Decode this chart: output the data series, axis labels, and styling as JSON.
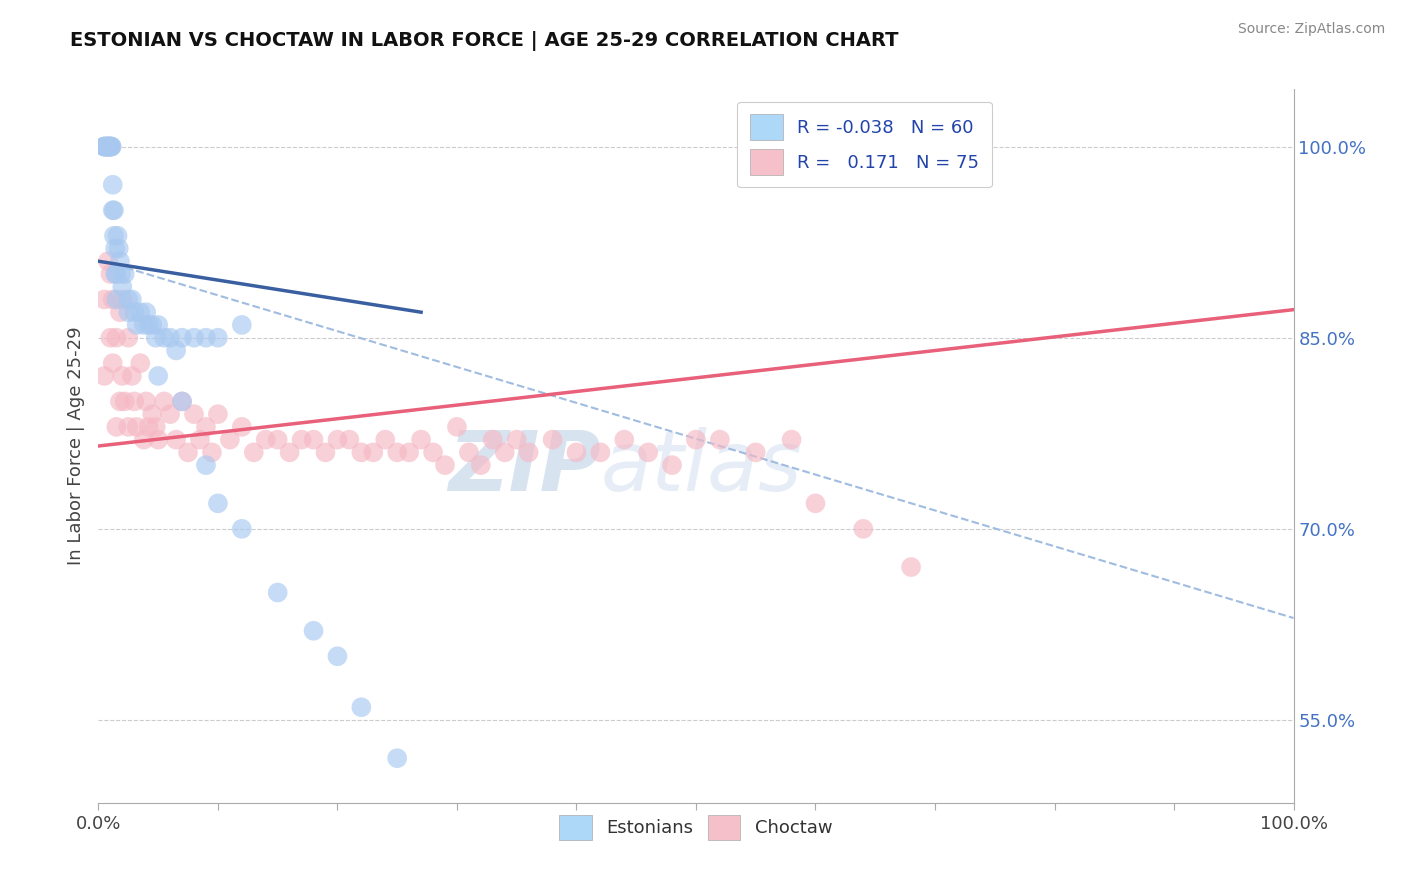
{
  "title": "ESTONIAN VS CHOCTAW IN LABOR FORCE | AGE 25-29 CORRELATION CHART",
  "source": "Source: ZipAtlas.com",
  "ylabel": "In Labor Force | Age 25-29",
  "xlim": [
    0.0,
    1.0
  ],
  "ylim": [
    0.485,
    1.045
  ],
  "blue_color": "#A8C8F0",
  "pink_color": "#F5B8C4",
  "blue_line_color": "#3A5FA0",
  "pink_line_color": "#E8607A",
  "dash_line_color": "#A0BCE0",
  "R_blue": -0.038,
  "N_blue": 60,
  "R_pink": 0.171,
  "N_pink": 75,
  "watermark_zip": "ZIP",
  "watermark_atlas": "atlas",
  "y_ticks_right": [
    0.55,
    0.7,
    0.85,
    1.0
  ],
  "y_tick_labels_right": [
    "55.0%",
    "70.0%",
    "85.0%",
    "100.0%"
  ],
  "blue_x": [
    0.005,
    0.005,
    0.005,
    0.005,
    0.007,
    0.007,
    0.008,
    0.008,
    0.008,
    0.009,
    0.009,
    0.01,
    0.01,
    0.01,
    0.011,
    0.011,
    0.012,
    0.012,
    0.013,
    0.013,
    0.014,
    0.014,
    0.015,
    0.015,
    0.016,
    0.017,
    0.018,
    0.019,
    0.02,
    0.022,
    0.025,
    0.025,
    0.028,
    0.03,
    0.032,
    0.035,
    0.038,
    0.04,
    0.042,
    0.045,
    0.048,
    0.05,
    0.055,
    0.06,
    0.065,
    0.07,
    0.08,
    0.09,
    0.1,
    0.12,
    0.05,
    0.07,
    0.09,
    0.1,
    0.12,
    0.15,
    0.18,
    0.2,
    0.22,
    0.25
  ],
  "blue_y": [
    1.0,
    1.0,
    1.0,
    1.0,
    1.0,
    1.0,
    1.0,
    1.0,
    1.0,
    1.0,
    1.0,
    1.0,
    1.0,
    1.0,
    1.0,
    1.0,
    0.97,
    0.95,
    0.95,
    0.93,
    0.92,
    0.9,
    0.9,
    0.88,
    0.93,
    0.92,
    0.91,
    0.9,
    0.89,
    0.9,
    0.88,
    0.87,
    0.88,
    0.87,
    0.86,
    0.87,
    0.86,
    0.87,
    0.86,
    0.86,
    0.85,
    0.86,
    0.85,
    0.85,
    0.84,
    0.85,
    0.85,
    0.85,
    0.85,
    0.86,
    0.82,
    0.8,
    0.75,
    0.72,
    0.7,
    0.65,
    0.62,
    0.6,
    0.56,
    0.52
  ],
  "pink_x": [
    0.005,
    0.005,
    0.008,
    0.01,
    0.01,
    0.012,
    0.012,
    0.015,
    0.015,
    0.018,
    0.018,
    0.02,
    0.02,
    0.022,
    0.025,
    0.025,
    0.028,
    0.03,
    0.032,
    0.035,
    0.038,
    0.04,
    0.042,
    0.045,
    0.048,
    0.05,
    0.055,
    0.06,
    0.065,
    0.07,
    0.075,
    0.08,
    0.085,
    0.09,
    0.095,
    0.1,
    0.11,
    0.12,
    0.13,
    0.14,
    0.15,
    0.16,
    0.17,
    0.18,
    0.19,
    0.2,
    0.21,
    0.22,
    0.23,
    0.24,
    0.25,
    0.26,
    0.27,
    0.28,
    0.29,
    0.3,
    0.31,
    0.32,
    0.33,
    0.34,
    0.35,
    0.36,
    0.38,
    0.4,
    0.42,
    0.44,
    0.46,
    0.48,
    0.5,
    0.52,
    0.55,
    0.58,
    0.6,
    0.64,
    0.68
  ],
  "pink_y": [
    0.88,
    0.82,
    0.91,
    0.9,
    0.85,
    0.88,
    0.83,
    0.85,
    0.78,
    0.87,
    0.8,
    0.88,
    0.82,
    0.8,
    0.85,
    0.78,
    0.82,
    0.8,
    0.78,
    0.83,
    0.77,
    0.8,
    0.78,
    0.79,
    0.78,
    0.77,
    0.8,
    0.79,
    0.77,
    0.8,
    0.76,
    0.79,
    0.77,
    0.78,
    0.76,
    0.79,
    0.77,
    0.78,
    0.76,
    0.77,
    0.77,
    0.76,
    0.77,
    0.77,
    0.76,
    0.77,
    0.77,
    0.76,
    0.76,
    0.77,
    0.76,
    0.76,
    0.77,
    0.76,
    0.75,
    0.78,
    0.76,
    0.75,
    0.77,
    0.76,
    0.77,
    0.76,
    0.77,
    0.76,
    0.76,
    0.77,
    0.76,
    0.75,
    0.77,
    0.77,
    0.76,
    0.77,
    0.72,
    0.7,
    0.67
  ],
  "blue_line_x0": 0.0,
  "blue_line_x1": 0.27,
  "blue_line_y0": 0.91,
  "blue_line_y1": 0.87,
  "pink_line_x0": 0.0,
  "pink_line_x1": 1.0,
  "pink_line_y0": 0.765,
  "pink_line_y1": 0.872,
  "dash_line_x0": 0.005,
  "dash_line_x1": 1.0,
  "dash_line_y0": 0.91,
  "dash_line_y1": 0.63,
  "x_tick_count": 11
}
